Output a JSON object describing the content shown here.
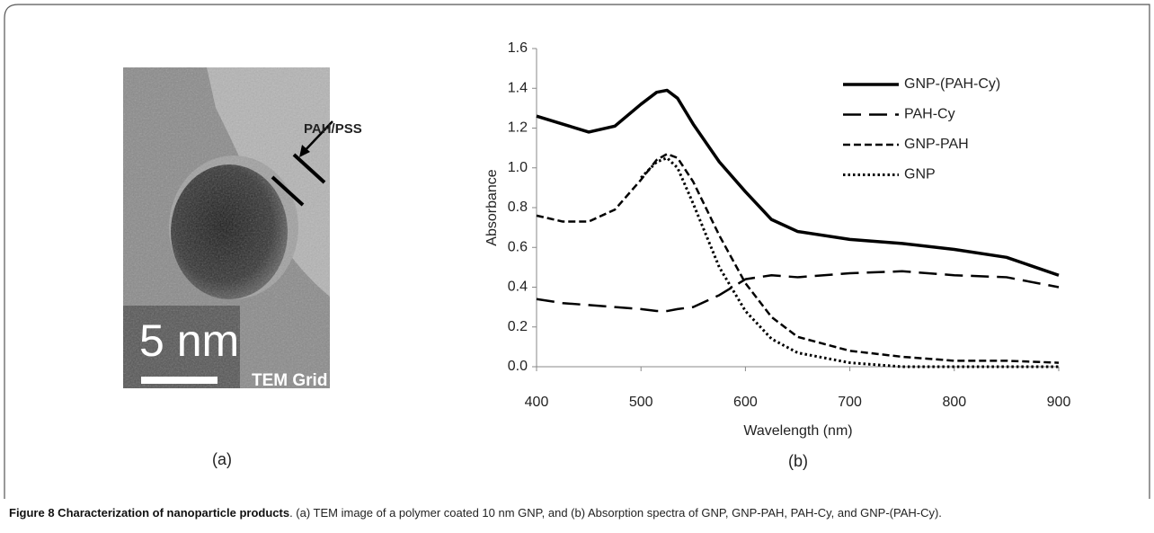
{
  "panel_a": {
    "coating_label": "PAH/PSS",
    "scale_label": "5 nm",
    "grid_label": "TEM Grid",
    "panel_label": "(a)"
  },
  "panel_b": {
    "panel_label": "(b)"
  },
  "chart_data": {
    "type": "line",
    "xlabel": "Wavelength (nm)",
    "ylabel": "Absorbance",
    "x": [
      400,
      425,
      450,
      475,
      500,
      515,
      525,
      535,
      550,
      575,
      600,
      625,
      650,
      700,
      750,
      800,
      850,
      900
    ],
    "series": [
      {
        "name": "GNP-(PAH-Cy)",
        "color": "#000000",
        "dash": "solid",
        "values": [
          1.26,
          1.22,
          1.18,
          1.21,
          1.32,
          1.38,
          1.39,
          1.35,
          1.22,
          1.03,
          0.88,
          0.74,
          0.68,
          0.64,
          0.62,
          0.59,
          0.55,
          0.46
        ]
      },
      {
        "name": "PAH-Cy",
        "color": "#000000",
        "dash": "long",
        "values": [
          0.34,
          0.32,
          0.31,
          0.3,
          0.29,
          0.28,
          0.28,
          0.29,
          0.3,
          0.36,
          0.44,
          0.46,
          0.45,
          0.47,
          0.48,
          0.46,
          0.45,
          0.4
        ]
      },
      {
        "name": "GNP-PAH",
        "color": "#000000",
        "dash": "short",
        "values": [
          0.76,
          0.73,
          0.73,
          0.79,
          0.94,
          1.04,
          1.07,
          1.05,
          0.93,
          0.66,
          0.42,
          0.25,
          0.15,
          0.08,
          0.05,
          0.03,
          0.03,
          0.02
        ]
      },
      {
        "name": "GNP",
        "color": "#000000",
        "dash": "dotted",
        "values": [
          null,
          null,
          null,
          null,
          0.95,
          1.03,
          1.05,
          1.0,
          0.82,
          0.5,
          0.28,
          0.14,
          0.07,
          0.02,
          0,
          0,
          0,
          0
        ]
      }
    ],
    "xlim": [
      400,
      900
    ],
    "ylim": [
      0,
      1.6
    ],
    "xticks": [
      400,
      500,
      600,
      700,
      800,
      900
    ],
    "yticks": [
      {
        "value": 0,
        "label": "0.0"
      },
      {
        "value": 0.2,
        "label": "0.2"
      },
      {
        "value": 0.4,
        "label": "0.4"
      },
      {
        "value": 0.6,
        "label": "0.6"
      },
      {
        "value": 0.8,
        "label": "0.8"
      },
      {
        "value": 1,
        "label": "1.0"
      },
      {
        "value": 1.2,
        "label": "1.2"
      },
      {
        "value": 1.4,
        "label": "1.4"
      },
      {
        "value": 1.6,
        "label": "1.6"
      }
    ],
    "grid": false,
    "legend": "upper right"
  },
  "caption": {
    "title": "Figure 8 Characterization of nanoparticle products",
    "text": ". (a) TEM image of a polymer coated 10 nm GNP, and (b) Absorption spectra of GNP, GNP-PAH, PAH-Cy, and GNP-(PAH-Cy)."
  }
}
